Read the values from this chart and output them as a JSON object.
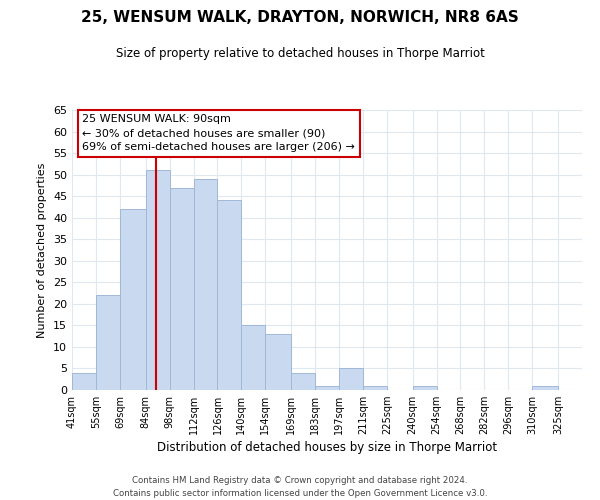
{
  "title": "25, WENSUM WALK, DRAYTON, NORWICH, NR8 6AS",
  "subtitle": "Size of property relative to detached houses in Thorpe Marriot",
  "xlabel": "Distribution of detached houses by size in Thorpe Marriot",
  "ylabel": "Number of detached properties",
  "footnote1": "Contains HM Land Registry data © Crown copyright and database right 2024.",
  "footnote2": "Contains public sector information licensed under the Open Government Licence v3.0.",
  "bin_labels": [
    "41sqm",
    "55sqm",
    "69sqm",
    "84sqm",
    "98sqm",
    "112sqm",
    "126sqm",
    "140sqm",
    "154sqm",
    "169sqm",
    "183sqm",
    "197sqm",
    "211sqm",
    "225sqm",
    "240sqm",
    "254sqm",
    "268sqm",
    "282sqm",
    "296sqm",
    "310sqm",
    "325sqm"
  ],
  "bar_heights": [
    4,
    22,
    42,
    51,
    47,
    49,
    44,
    15,
    13,
    4,
    1,
    5,
    1,
    0,
    1,
    0,
    0,
    0,
    0,
    1,
    0
  ],
  "bar_color": "#c8d9f0",
  "bar_edge_color": "#a0b8d8",
  "property_line_label": "25 WENSUM WALK: 90sqm",
  "annotation_line1": "← 30% of detached houses are smaller (90)",
  "annotation_line2": "69% of semi-detached houses are larger (206) →",
  "annotation_box_color": "#ffffff",
  "annotation_box_edge": "#cc0000",
  "line_color": "#cc0000",
  "ylim": [
    0,
    65
  ],
  "yticks": [
    0,
    5,
    10,
    15,
    20,
    25,
    30,
    35,
    40,
    45,
    50,
    55,
    60,
    65
  ],
  "background_color": "#ffffff",
  "grid_color": "#dde8f0"
}
